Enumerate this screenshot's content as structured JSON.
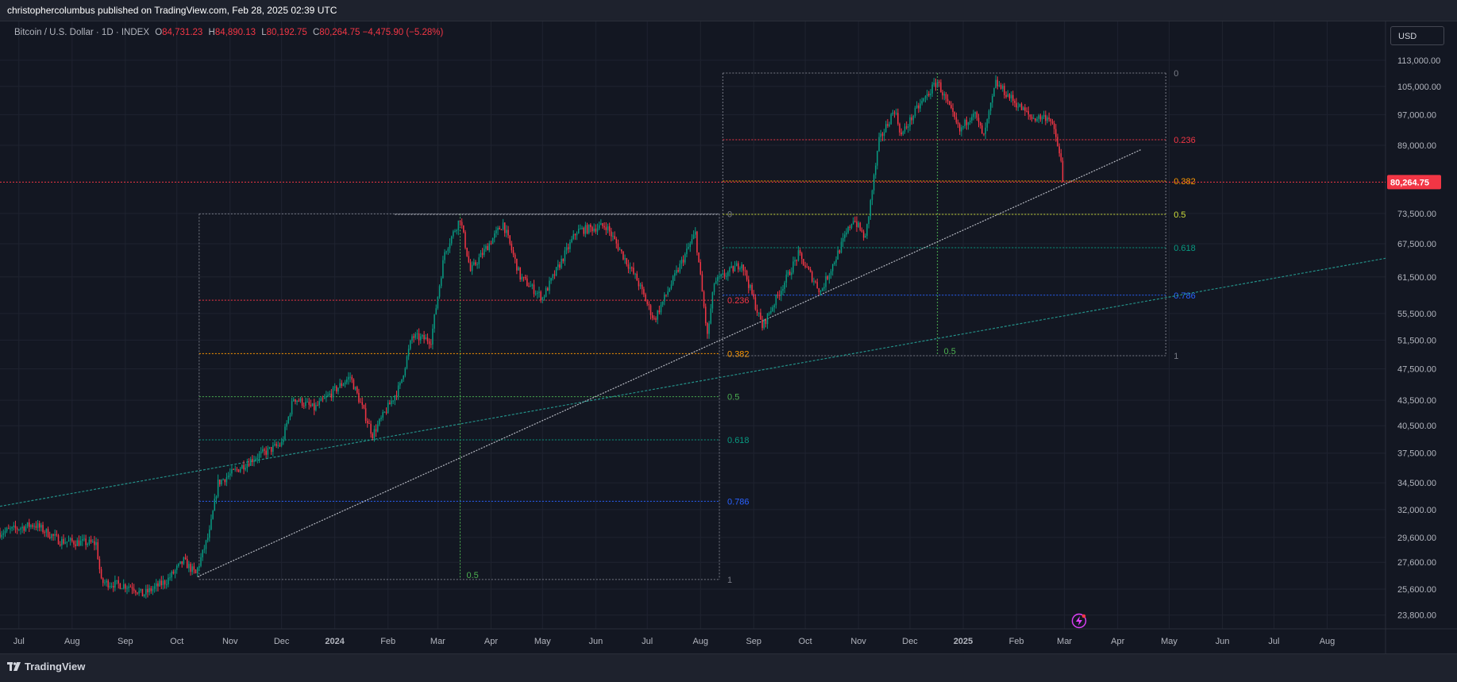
{
  "header": {
    "published_text": "christophercolumbus published on TradingView.com, Feb 28, 2025 02:39 UTC"
  },
  "legend": {
    "symbol": "Bitcoin / U.S. Dollar · 1D · INDEX",
    "open_label": "O",
    "open": "84,731.23",
    "high_label": "H",
    "high": "84,890.13",
    "low_label": "L",
    "low": "80,192.75",
    "close_label": "C",
    "close": "80,264.75",
    "change": "−4,475.90 (−5.28%)"
  },
  "currency": "USD",
  "footer": {
    "brand": "TradingView"
  },
  "colors": {
    "background": "#131722",
    "up": "#089981",
    "down": "#f23645",
    "price_label_bg": "#f23645"
  },
  "icons": [
    "tradingview-logo-icon",
    "alert-bolt-icon"
  ],
  "chart_data": {
    "type": "candlestick",
    "symbol": "BTCUSD",
    "interval": "1D",
    "last_price": 80264.75,
    "last_price_label": "80,264.75",
    "y_scale": "log",
    "ylim": [
      22900,
      126000
    ],
    "y_ticks": [
      {
        "value": 113000,
        "label": "113,000.00"
      },
      {
        "value": 105000,
        "label": "105,000.00"
      },
      {
        "value": 97000,
        "label": "97,000.00"
      },
      {
        "value": 89000,
        "label": "89,000.00"
      },
      {
        "value": 73500,
        "label": "73,500.00"
      },
      {
        "value": 67500,
        "label": "67,500.00"
      },
      {
        "value": 61500,
        "label": "61,500.00"
      },
      {
        "value": 55500,
        "label": "55,500.00"
      },
      {
        "value": 51500,
        "label": "51,500.00"
      },
      {
        "value": 47500,
        "label": "47,500.00"
      },
      {
        "value": 43500,
        "label": "43,500.00"
      },
      {
        "value": 40500,
        "label": "40,500.00"
      },
      {
        "value": 37500,
        "label": "37,500.00"
      },
      {
        "value": 34500,
        "label": "34,500.00"
      },
      {
        "value": 32000,
        "label": "32,000.00"
      },
      {
        "value": 29600,
        "label": "29,600.00"
      },
      {
        "value": 27600,
        "label": "27,600.00"
      },
      {
        "value": 25600,
        "label": "25,600.00"
      },
      {
        "value": 23800,
        "label": "23,800.00"
      }
    ],
    "x_axis": {
      "start": "2023-06-20",
      "end": "2025-09-04",
      "ticks": [
        {
          "date": "2023-07-01",
          "label": "Jul"
        },
        {
          "date": "2023-08-01",
          "label": "Aug"
        },
        {
          "date": "2023-09-01",
          "label": "Sep"
        },
        {
          "date": "2023-10-01",
          "label": "Oct"
        },
        {
          "date": "2023-11-01",
          "label": "Nov"
        },
        {
          "date": "2023-12-01",
          "label": "Dec"
        },
        {
          "date": "2024-01-01",
          "label": "2024",
          "bold": true
        },
        {
          "date": "2024-02-01",
          "label": "Feb"
        },
        {
          "date": "2024-03-01",
          "label": "Mar"
        },
        {
          "date": "2024-04-01",
          "label": "Apr"
        },
        {
          "date": "2024-05-01",
          "label": "May"
        },
        {
          "date": "2024-06-01",
          "label": "Jun"
        },
        {
          "date": "2024-07-01",
          "label": "Jul"
        },
        {
          "date": "2024-08-01",
          "label": "Aug"
        },
        {
          "date": "2024-09-01",
          "label": "Sep"
        },
        {
          "date": "2024-10-01",
          "label": "Oct"
        },
        {
          "date": "2024-11-01",
          "label": "Nov"
        },
        {
          "date": "2024-12-01",
          "label": "Dec"
        },
        {
          "date": "2025-01-01",
          "label": "2025",
          "bold": true
        },
        {
          "date": "2025-02-01",
          "label": "Feb"
        },
        {
          "date": "2025-03-01",
          "label": "Mar"
        },
        {
          "date": "2025-04-01",
          "label": "Apr"
        },
        {
          "date": "2025-05-01",
          "label": "May"
        },
        {
          "date": "2025-06-01",
          "label": "Jun"
        },
        {
          "date": "2025-07-01",
          "label": "Jul"
        },
        {
          "date": "2025-08-01",
          "label": "Aug"
        }
      ]
    },
    "price_path": [
      {
        "date": "2023-06-20",
        "price": 30000
      },
      {
        "date": "2023-07-10",
        "price": 30700
      },
      {
        "date": "2023-07-25",
        "price": 29300
      },
      {
        "date": "2023-08-15",
        "price": 29100
      },
      {
        "date": "2023-08-18",
        "price": 26100
      },
      {
        "date": "2023-09-05",
        "price": 25800
      },
      {
        "date": "2023-09-11",
        "price": 25200
      },
      {
        "date": "2023-09-25",
        "price": 26200
      },
      {
        "date": "2023-10-05",
        "price": 27700
      },
      {
        "date": "2023-10-12",
        "price": 26700
      },
      {
        "date": "2023-10-20",
        "price": 30000
      },
      {
        "date": "2023-10-25",
        "price": 34500
      },
      {
        "date": "2023-11-15",
        "price": 37000
      },
      {
        "date": "2023-12-01",
        "price": 38500
      },
      {
        "date": "2023-12-08",
        "price": 43800
      },
      {
        "date": "2023-12-20",
        "price": 42500
      },
      {
        "date": "2024-01-10",
        "price": 46500
      },
      {
        "date": "2024-01-23",
        "price": 39500
      },
      {
        "date": "2024-02-08",
        "price": 45300
      },
      {
        "date": "2024-02-15",
        "price": 52000
      },
      {
        "date": "2024-02-26",
        "price": 51500
      },
      {
        "date": "2024-03-05",
        "price": 66000
      },
      {
        "date": "2024-03-14",
        "price": 72500
      },
      {
        "date": "2024-03-20",
        "price": 62500
      },
      {
        "date": "2024-04-08",
        "price": 71500
      },
      {
        "date": "2024-04-18",
        "price": 61500
      },
      {
        "date": "2024-05-01",
        "price": 58000
      },
      {
        "date": "2024-05-21",
        "price": 70000
      },
      {
        "date": "2024-06-07",
        "price": 71000
      },
      {
        "date": "2024-06-25",
        "price": 61000
      },
      {
        "date": "2024-07-05",
        "price": 54500
      },
      {
        "date": "2024-07-29",
        "price": 69500
      },
      {
        "date": "2024-08-05",
        "price": 52000
      },
      {
        "date": "2024-08-09",
        "price": 60500
      },
      {
        "date": "2024-08-25",
        "price": 64000
      },
      {
        "date": "2024-09-06",
        "price": 53500
      },
      {
        "date": "2024-09-27",
        "price": 65500
      },
      {
        "date": "2024-10-10",
        "price": 59000
      },
      {
        "date": "2024-10-29",
        "price": 72500
      },
      {
        "date": "2024-11-05",
        "price": 68500
      },
      {
        "date": "2024-11-13",
        "price": 90000
      },
      {
        "date": "2024-11-22",
        "price": 98500
      },
      {
        "date": "2024-11-26",
        "price": 91500
      },
      {
        "date": "2024-12-05",
        "price": 98500
      },
      {
        "date": "2024-12-17",
        "price": 106500
      },
      {
        "date": "2024-12-30",
        "price": 92500
      },
      {
        "date": "2025-01-07",
        "price": 98000
      },
      {
        "date": "2025-01-13",
        "price": 91000
      },
      {
        "date": "2025-01-20",
        "price": 106000
      },
      {
        "date": "2025-02-01",
        "price": 100000
      },
      {
        "date": "2025-02-10",
        "price": 96000
      },
      {
        "date": "2025-02-20",
        "price": 96500
      },
      {
        "date": "2025-02-24",
        "price": 91000
      },
      {
        "date": "2025-02-27",
        "price": 84700
      },
      {
        "date": "2025-02-28",
        "price": 80264.75
      }
    ],
    "trendlines": [
      {
        "name": "support-trendline",
        "from": {
          "date": "2023-10-13",
          "price": 26500
        },
        "to": {
          "date": "2025-04-15",
          "price": 88000
        },
        "color": "#d1d4dc"
      },
      {
        "name": "long-trendline",
        "from": {
          "date": "2023-06-20",
          "price": 32300
        },
        "to": {
          "date": "2025-09-04",
          "price": 64800
        },
        "color": "#26a69a"
      }
    ],
    "horizontal_lines": [
      {
        "name": "resistance-2024",
        "price": 73300,
        "from": "2024-02-05",
        "to": "2024-08-12",
        "color": "#d1d4dc"
      },
      {
        "name": "last-price-line",
        "price": 80264.75,
        "color": "#f23645"
      }
    ],
    "fib_retracements": [
      {
        "name": "fib-2023-2024",
        "from": "2023-10-14",
        "to": "2024-08-12",
        "mid_date": "2024-03-14",
        "price_0": 73400,
        "price_1": 26300,
        "levels": [
          {
            "ratio": 0,
            "label": "0",
            "color": "#787b86"
          },
          {
            "ratio": 0.236,
            "label": "0.236",
            "color": "#f23645"
          },
          {
            "ratio": 0.382,
            "label": "0.382",
            "color": "#ff9800"
          },
          {
            "ratio": 0.5,
            "label": "0.5",
            "color": "#4caf50"
          },
          {
            "ratio": 0.618,
            "label": "0.618",
            "color": "#089981"
          },
          {
            "ratio": 0.786,
            "label": "0.786",
            "color": "#2962ff"
          },
          {
            "ratio": 1,
            "label": "1",
            "color": "#787b86"
          }
        ],
        "mid_label": "0.5"
      },
      {
        "name": "fib-2024-2025",
        "from": "2024-08-14",
        "to": "2025-04-29",
        "mid_date": "2024-12-17",
        "price_0": 109000,
        "price_1": 49300,
        "levels": [
          {
            "ratio": 0,
            "label": "0",
            "color": "#787b86"
          },
          {
            "ratio": 0.236,
            "label": "0.236",
            "color": "#f23645"
          },
          {
            "ratio": 0.382,
            "label": "0.382",
            "color": "#ff9800"
          },
          {
            "ratio": 0.5,
            "label": "0.5",
            "color": "#cddc39"
          },
          {
            "ratio": 0.618,
            "label": "0.618",
            "color": "#089981"
          },
          {
            "ratio": 0.786,
            "label": "0.786",
            "color": "#2962ff"
          },
          {
            "ratio": 1,
            "label": "1",
            "color": "#787b86"
          }
        ],
        "mid_label": "0.5"
      }
    ]
  }
}
